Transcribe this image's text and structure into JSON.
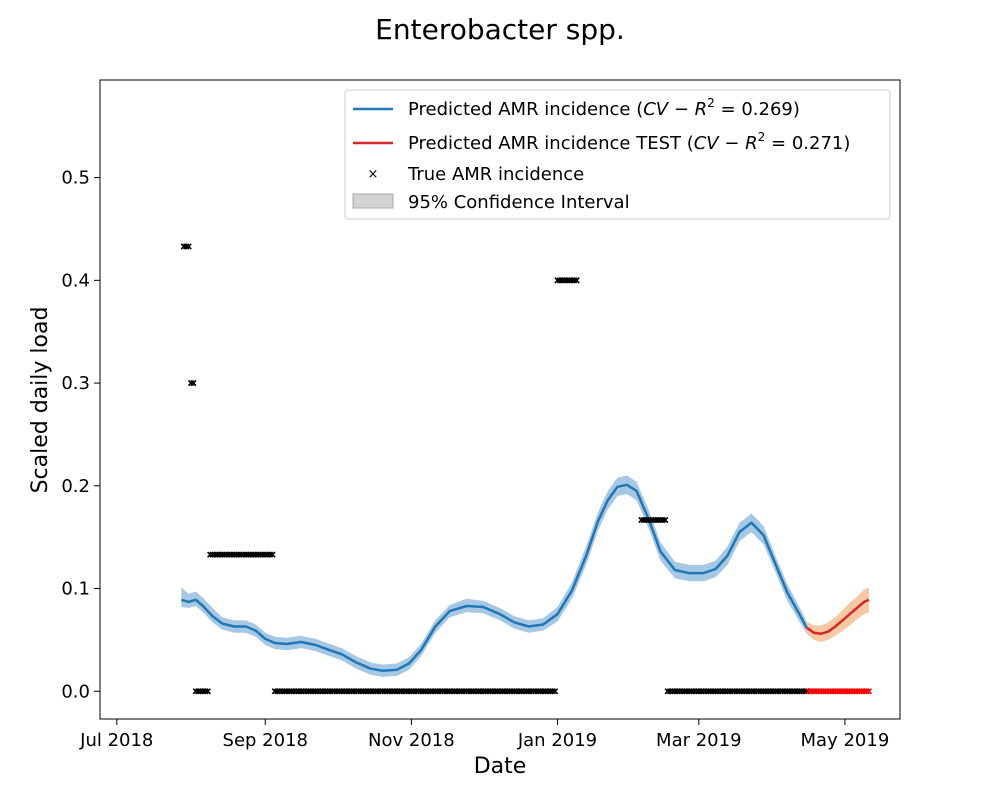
{
  "chart_data": {
    "type": "line",
    "title": "Enterobacter spp.",
    "xlabel": "Date",
    "ylabel": "Scaled daily load",
    "xlim": [
      "2018-06-24",
      "2019-05-24"
    ],
    "ylim": [
      -0.027,
      0.595
    ],
    "x_ticks": [
      {
        "date": "2018-07-01",
        "label": "Jul 2018"
      },
      {
        "date": "2018-09-01",
        "label": "Sep 2018"
      },
      {
        "date": "2018-11-01",
        "label": "Nov 2018"
      },
      {
        "date": "2019-01-01",
        "label": "Jan 2019"
      },
      {
        "date": "2019-03-01",
        "label": "Mar 2019"
      },
      {
        "date": "2019-05-01",
        "label": "May 2019"
      }
    ],
    "y_ticks": [
      0.0,
      0.1,
      0.2,
      0.3,
      0.4,
      0.5
    ],
    "y_tick_labels": [
      "0.0",
      "0.1",
      "0.2",
      "0.3",
      "0.4",
      "0.5"
    ],
    "grid": false,
    "legend_position": "top-right",
    "legend": [
      {
        "key": "pred",
        "label": "Predicted AMR incidence (CV − R² = 0.269)",
        "text": "Predicted AMR incidence (",
        "math": "CV − R",
        "sup": "2",
        "value": " = 0.269)"
      },
      {
        "key": "test",
        "label": "Predicted AMR incidence TEST (CV − R² = 0.271)",
        "text": "Predicted AMR incidence TEST (",
        "math": "CV − R",
        "sup": "2",
        "value": " = 0.271)"
      },
      {
        "key": "true",
        "label": "True AMR incidence"
      },
      {
        "key": "ci",
        "label": "95% Confidence Interval"
      }
    ],
    "colors": {
      "pred_line": "#1f77b4",
      "pred_band": "#a6c8e4",
      "test_line": "#d62728",
      "test_band": "#f7c9a3",
      "true_marker": "#000000",
      "true_marker_test": "#ff0000",
      "ci_legend": "#d3d3d3"
    },
    "series": [
      {
        "name": "Predicted AMR incidence",
        "x": [
          "2018-07-28",
          "2018-07-31",
          "2018-08-03",
          "2018-08-06",
          "2018-08-10",
          "2018-08-14",
          "2018-08-19",
          "2018-08-24",
          "2018-08-28",
          "2018-09-01",
          "2018-09-05",
          "2018-09-10",
          "2018-09-16",
          "2018-09-22",
          "2018-09-28",
          "2018-10-03",
          "2018-10-09",
          "2018-10-15",
          "2018-10-20",
          "2018-10-26",
          "2018-10-31",
          "2018-11-05",
          "2018-11-11",
          "2018-11-17",
          "2018-11-24",
          "2018-12-01",
          "2018-12-08",
          "2018-12-14",
          "2018-12-20",
          "2018-12-26",
          "2019-01-01",
          "2019-01-07",
          "2019-01-13",
          "2019-01-18",
          "2019-01-22",
          "2019-01-26",
          "2019-01-30",
          "2019-02-03",
          "2019-02-08",
          "2019-02-13",
          "2019-02-19",
          "2019-02-25",
          "2019-03-03",
          "2019-03-08",
          "2019-03-13",
          "2019-03-18",
          "2019-03-23",
          "2019-03-28",
          "2019-04-02",
          "2019-04-07",
          "2019-04-12",
          "2019-04-15"
        ],
        "y": [
          0.089,
          0.087,
          0.089,
          0.083,
          0.073,
          0.066,
          0.063,
          0.063,
          0.059,
          0.051,
          0.047,
          0.046,
          0.048,
          0.045,
          0.04,
          0.036,
          0.028,
          0.022,
          0.02,
          0.021,
          0.027,
          0.04,
          0.063,
          0.078,
          0.083,
          0.082,
          0.075,
          0.067,
          0.063,
          0.065,
          0.075,
          0.098,
          0.132,
          0.166,
          0.186,
          0.199,
          0.201,
          0.195,
          0.168,
          0.136,
          0.118,
          0.115,
          0.115,
          0.119,
          0.132,
          0.155,
          0.164,
          0.152,
          0.124,
          0.096,
          0.075,
          0.062
        ],
        "ci_lower": [
          0.082,
          0.081,
          0.083,
          0.077,
          0.067,
          0.06,
          0.057,
          0.057,
          0.053,
          0.045,
          0.041,
          0.04,
          0.042,
          0.039,
          0.034,
          0.03,
          0.022,
          0.016,
          0.014,
          0.015,
          0.021,
          0.034,
          0.057,
          0.072,
          0.077,
          0.076,
          0.069,
          0.061,
          0.057,
          0.059,
          0.068,
          0.09,
          0.123,
          0.157,
          0.177,
          0.19,
          0.192,
          0.186,
          0.159,
          0.127,
          0.11,
          0.107,
          0.107,
          0.111,
          0.123,
          0.146,
          0.155,
          0.143,
          0.116,
          0.088,
          0.068,
          0.056
        ],
        "ci_upper": [
          0.101,
          0.095,
          0.097,
          0.091,
          0.081,
          0.072,
          0.069,
          0.069,
          0.065,
          0.057,
          0.053,
          0.052,
          0.054,
          0.051,
          0.046,
          0.042,
          0.034,
          0.028,
          0.026,
          0.027,
          0.033,
          0.046,
          0.069,
          0.084,
          0.09,
          0.088,
          0.081,
          0.073,
          0.069,
          0.071,
          0.082,
          0.106,
          0.141,
          0.175,
          0.195,
          0.208,
          0.21,
          0.204,
          0.177,
          0.145,
          0.126,
          0.123,
          0.123,
          0.127,
          0.141,
          0.164,
          0.173,
          0.161,
          0.132,
          0.104,
          0.082,
          0.068
        ]
      },
      {
        "name": "Predicted AMR incidence TEST",
        "x": [
          "2019-04-15",
          "2019-04-18",
          "2019-04-21",
          "2019-04-24",
          "2019-04-27",
          "2019-04-30",
          "2019-05-03",
          "2019-05-06",
          "2019-05-09",
          "2019-05-11"
        ],
        "y": [
          0.062,
          0.057,
          0.056,
          0.058,
          0.063,
          0.069,
          0.075,
          0.081,
          0.087,
          0.089
        ],
        "ci_lower": [
          0.056,
          0.05,
          0.048,
          0.05,
          0.054,
          0.059,
          0.064,
          0.07,
          0.075,
          0.077
        ],
        "ci_upper": [
          0.068,
          0.064,
          0.064,
          0.067,
          0.072,
          0.079,
          0.086,
          0.092,
          0.099,
          0.101
        ]
      },
      {
        "name": "True AMR incidence",
        "type": "scatter",
        "segments": [
          {
            "start": "2018-07-29",
            "end": "2018-07-31",
            "y": 0.433,
            "test": false
          },
          {
            "start": "2018-08-01",
            "end": "2018-08-02",
            "y": 0.3,
            "test": false
          },
          {
            "start": "2018-08-03",
            "end": "2018-08-08",
            "y": 0.0,
            "test": false
          },
          {
            "start": "2018-08-09",
            "end": "2018-09-04",
            "y": 0.133,
            "test": false
          },
          {
            "start": "2018-09-05",
            "end": "2018-12-31",
            "y": 0.0,
            "test": false
          },
          {
            "start": "2019-01-01",
            "end": "2019-01-09",
            "y": 0.4,
            "test": false
          },
          {
            "start": "2019-02-05",
            "end": "2019-02-15",
            "y": 0.1667,
            "test": false
          },
          {
            "start": "2019-02-16",
            "end": "2019-04-15",
            "y": 0.0,
            "test": false
          },
          {
            "start": "2019-04-16",
            "end": "2019-05-11",
            "y": 0.0,
            "test": true
          }
        ]
      }
    ]
  }
}
